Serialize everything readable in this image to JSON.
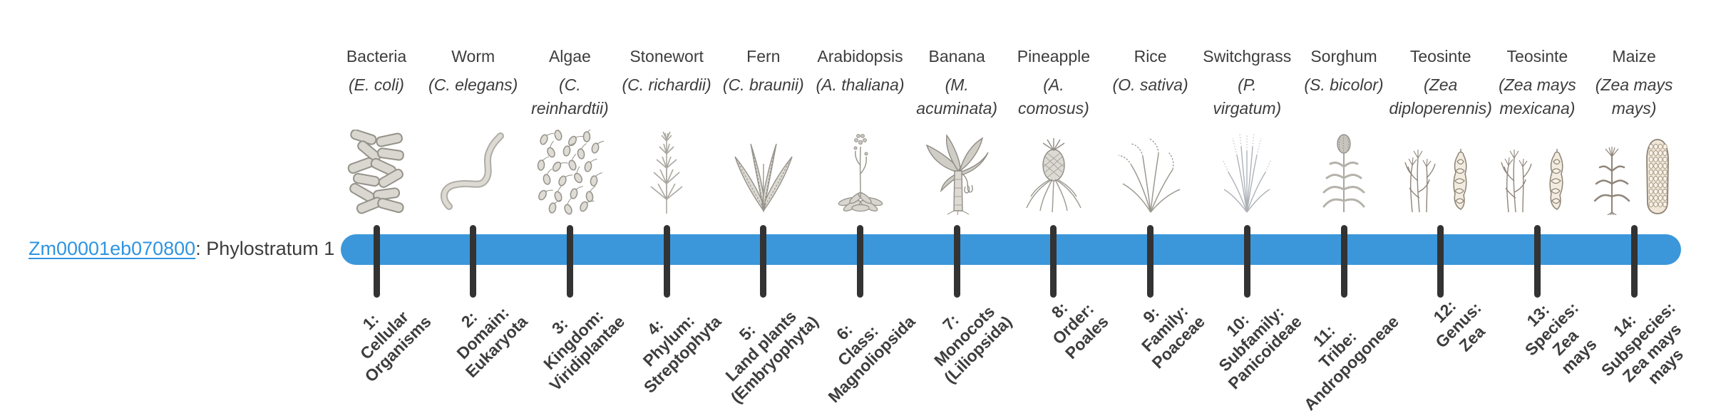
{
  "gene": {
    "id": "Zm00001eb070800",
    "suffix": ": Phylostratum 1"
  },
  "colors": {
    "bar": "#3b97da",
    "tick": "#333333",
    "link": "#2f94e0",
    "text": "#3d3d3d"
  },
  "columns": [
    {
      "common_name": "Bacteria",
      "scientific_name": "(E. coli)",
      "icon": "bacteria-icon",
      "stratum_label": "1:\nCellular\nOrganisms"
    },
    {
      "common_name": "Worm",
      "scientific_name": "(C. elegans)",
      "icon": "worm-icon",
      "stratum_label": "2:\nDomain:\nEukaryota"
    },
    {
      "common_name": "Algae",
      "scientific_name": "(C.\nreinhardtii)",
      "icon": "algae-icon",
      "stratum_label": "3:\nKingdom:\nViridiplantae"
    },
    {
      "common_name": "Stonewort",
      "scientific_name": "(C. richardii)",
      "icon": "stonewort-icon",
      "stratum_label": "4:\nPhylum:\nStreptophyta"
    },
    {
      "common_name": "Fern",
      "scientific_name": "(C. braunii)",
      "icon": "fern-icon",
      "stratum_label": "5:\nLand plants\n(Embryophyta)"
    },
    {
      "common_name": "Arabidopsis",
      "scientific_name": "(A. thaliana)",
      "icon": "arabidopsis-icon",
      "stratum_label": "6:\nClass:\nMagnoliopsida"
    },
    {
      "common_name": "Banana",
      "scientific_name": "(M.\nacuminata)",
      "icon": "banana-icon",
      "stratum_label": "7:\nMonocots\n(Liliopsida)"
    },
    {
      "common_name": "Pineapple",
      "scientific_name": "(A.\ncomosus)",
      "icon": "pineapple-icon",
      "stratum_label": "8:\nOrder:\nPoales"
    },
    {
      "common_name": "Rice",
      "scientific_name": "(O. sativa)",
      "icon": "rice-icon",
      "stratum_label": "9:\nFamily:\nPoaceae"
    },
    {
      "common_name": "Switchgrass",
      "scientific_name": "(P.\nvirgatum)",
      "icon": "switchgrass-icon",
      "stratum_label": "10:\nSubfamily:\nPanicoideae"
    },
    {
      "common_name": "Sorghum",
      "scientific_name": "(S. bicolor)",
      "icon": "sorghum-icon",
      "stratum_label": "11:\nTribe:\nAndropogoneae"
    },
    {
      "common_name": "Teosinte",
      "scientific_name": "(Zea\ndiploperennis)",
      "icon": "teosinte-diploperennis-icon",
      "stratum_label": "12:\nGenus:\nZea"
    },
    {
      "common_name": "Teosinte",
      "scientific_name": "(Zea mays\nmexicana)",
      "icon": "teosinte-mexicana-icon",
      "stratum_label": "13:\nSpecies:\nZea\nmays"
    },
    {
      "common_name": "Maize",
      "scientific_name": "(Zea mays\nmays)",
      "icon": "maize-icon",
      "stratum_label": "14:\nSubspecies:\nZea mays\nmays"
    }
  ]
}
